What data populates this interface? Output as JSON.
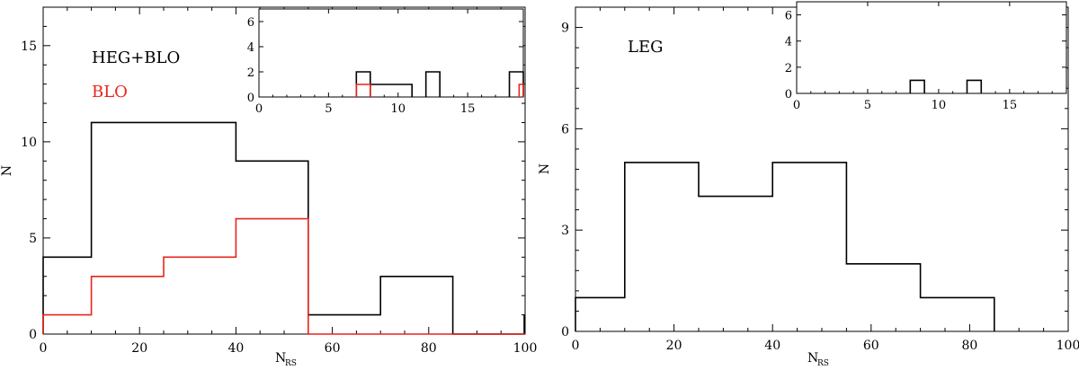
{
  "figure": "two-panel step histogram figure",
  "chart_data": [
    {
      "type": "bar",
      "style": "step-histogram",
      "panel": "left",
      "xlabel_main": "N",
      "xlabel_sub": "RS",
      "ylabel": "N",
      "xlim": [
        0,
        100
      ],
      "ylim": [
        0,
        17
      ],
      "xticks": [
        "0",
        "20",
        "40",
        "60",
        "80",
        "100"
      ],
      "yticks": [
        "0",
        "5",
        "10",
        "15"
      ],
      "annotations": [
        {
          "text": "HEG+BLO",
          "color": "#000000"
        },
        {
          "text": "BLO",
          "color": "#e8241c"
        }
      ],
      "bin_edges": [
        0,
        10,
        25,
        40,
        55,
        70,
        85,
        100
      ],
      "series": [
        {
          "name": "HEG+BLO",
          "color": "#000000",
          "counts": [
            4,
            11,
            11,
            9,
            1,
            3,
            0
          ],
          "extra_bar": {
            "x": 100,
            "value": 1
          }
        },
        {
          "name": "BLO",
          "color": "#e8241c",
          "counts": [
            1,
            3,
            4,
            6,
            0,
            0,
            0
          ]
        }
      ],
      "inset": {
        "xlim": [
          0,
          19
        ],
        "ylim": [
          0,
          7
        ],
        "xticks": [
          "0",
          "5",
          "10",
          "15"
        ],
        "yticks": [
          "0",
          "2",
          "4",
          "6"
        ],
        "series": [
          {
            "name": "HEG+BLO",
            "color": "#000000",
            "steps": [
              [
                7,
                8,
                2
              ],
              [
                8,
                11,
                1
              ],
              [
                12,
                13,
                2
              ],
              [
                18,
                19,
                2
              ]
            ]
          },
          {
            "name": "BLO",
            "color": "#e8241c",
            "steps": [
              [
                7,
                8,
                1
              ],
              [
                18.7,
                19,
                1
              ]
            ]
          }
        ]
      }
    },
    {
      "type": "bar",
      "style": "step-histogram",
      "panel": "right",
      "xlabel_main": "N",
      "xlabel_sub": "RS",
      "ylabel": "N",
      "xlim": [
        0,
        100
      ],
      "ylim": [
        0,
        9.6
      ],
      "xticks": [
        "0",
        "20",
        "40",
        "60",
        "80",
        "100"
      ],
      "yticks": [
        "0",
        "3",
        "6",
        "9"
      ],
      "annotations": [
        {
          "text": "LEG",
          "color": "#000000"
        }
      ],
      "bin_edges": [
        0,
        10,
        25,
        40,
        55,
        70,
        85
      ],
      "series": [
        {
          "name": "LEG",
          "color": "#000000",
          "counts": [
            1,
            5,
            4,
            5,
            2,
            1
          ]
        }
      ],
      "inset": {
        "xlim": [
          0,
          19
        ],
        "ylim": [
          0,
          7
        ],
        "xticks": [
          "0",
          "5",
          "10",
          "15"
        ],
        "yticks": [
          "0",
          "2",
          "4",
          "6"
        ],
        "series": [
          {
            "name": "LEG",
            "color": "#000000",
            "steps": [
              [
                8,
                9,
                1
              ],
              [
                12,
                13,
                1
              ]
            ]
          }
        ]
      }
    }
  ]
}
